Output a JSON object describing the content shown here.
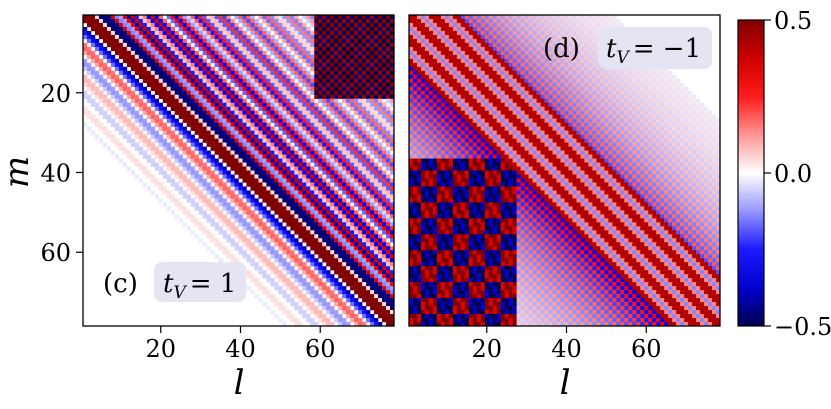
{
  "chart_data": {
    "type": "heatmap",
    "colorbar": {
      "colormap": "seismic",
      "vmin": -0.5,
      "vmax": 0.5,
      "ticks": [
        0.5,
        0.0,
        -0.5
      ],
      "tick_labels": [
        "0.5",
        "0.0",
        "−0.5"
      ],
      "colors": {
        "low": "#00004d",
        "mid": "#ffffff",
        "high": "#800000"
      }
    },
    "panels": [
      {
        "id": "c",
        "panel_label": "(c)",
        "param_symbol": "t",
        "param_subscript": "V",
        "param_value": "= 1",
        "xlabel": "l",
        "ylabel": "m",
        "xlim": [
          1,
          78
        ],
        "ylim": [
          1,
          78
        ],
        "xticks": [
          20,
          40,
          60
        ],
        "yticks": [
          20,
          40,
          60
        ]
      },
      {
        "id": "d",
        "panel_label": "(d)",
        "param_symbol": "t",
        "param_subscript": "V",
        "param_value": "= −1",
        "xlabel": "l",
        "ylabel": "",
        "xlim": [
          1,
          78
        ],
        "ylim": [
          1,
          78
        ],
        "xticks": [
          20,
          40,
          60
        ],
        "yticks": []
      }
    ]
  }
}
